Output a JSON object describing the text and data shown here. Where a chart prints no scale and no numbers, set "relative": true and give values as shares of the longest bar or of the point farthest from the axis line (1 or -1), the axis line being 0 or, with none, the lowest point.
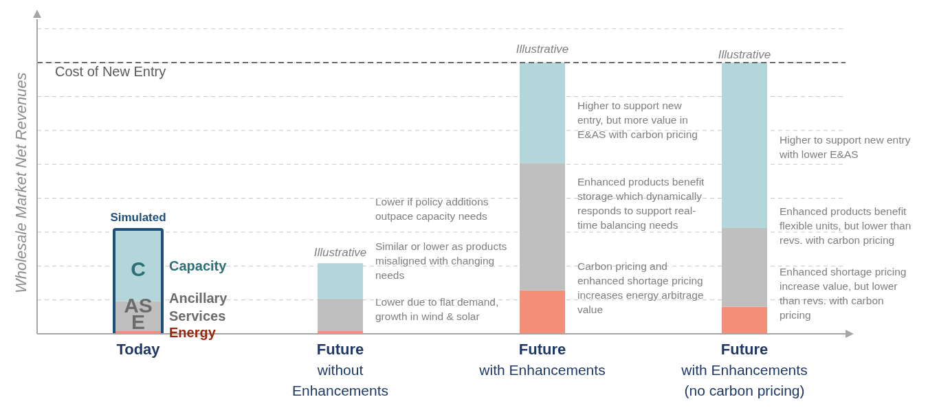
{
  "chart_data": {
    "type": "bar",
    "stacked": true,
    "relative": true,
    "ylabel": "Wholesale Market Net Revenues",
    "grid": true,
    "legend": false,
    "categories": [
      "Today",
      "Future\nwithout\nEnhancements",
      "Future\nwith Enhancements",
      "Future\nwith Enhancements\n(no carbon pricing)"
    ],
    "series": [
      {
        "name": "Energy",
        "color": "#f4907a",
        "values": [
          0.01,
          0.01,
          0.16,
          0.1
        ]
      },
      {
        "name": "Ancillary Services",
        "color": "#bfbfbf",
        "values": [
          0.11,
          0.12,
          0.47,
          0.29
        ]
      },
      {
        "name": "Capacity",
        "color": "#b2d6da",
        "values": [
          0.26,
          0.13,
          0.37,
          0.61
        ]
      }
    ],
    "ref_lines": [
      {
        "axis": "y",
        "value": 1,
        "label": "Cost of New Entry",
        "color": "#404040",
        "line_style": "dashed"
      }
    ],
    "annotations": [
      "Simulated",
      "C",
      "AS",
      "E",
      "Illustrative",
      "Illustrative",
      "Illustrative",
      "Lower if policy additions outpace capacity needs",
      "Similar or lower as products misaligned with changing needs",
      "Lower due to flat demand, growth in wind & solar",
      "Higher to support new entry, but more value in E&AS with carbon pricing",
      "Enhanced products benefit storage which dynamically responds to support real-time balancing needs",
      "Carbon pricing and enhanced shortage pricing increases energy arbitrage value",
      "Higher to support new entry with lower E&AS",
      "Enhanced products benefit flexible units, but lower than revs. with carbon pricing",
      "Enhanced shortage pricing increase value, but lower than revs. with carbon pricing"
    ]
  }
}
